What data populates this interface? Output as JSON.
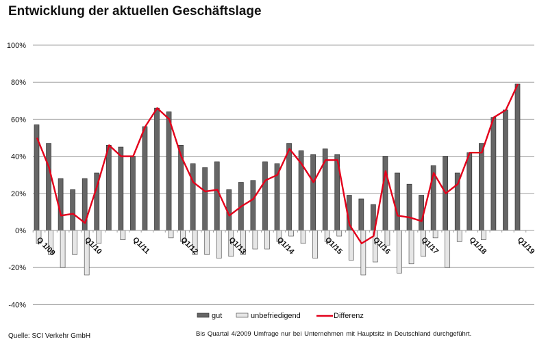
{
  "chart_data": {
    "type": "bar",
    "title": "Entwicklung der aktuellen Geschäftslage",
    "xlabel": "",
    "ylabel": "",
    "ylim": [
      -40,
      100
    ],
    "yticks": [
      100,
      80,
      60,
      40,
      20,
      0,
      -20,
      -40
    ],
    "ytick_labels": [
      "100%",
      "80%",
      "60%",
      "40%",
      "20%",
      "0%",
      "-20%",
      "-40%"
    ],
    "grid": true,
    "legend_position": "bottom",
    "categories": [
      "Q1/09",
      "Q2/09",
      "Q3/09",
      "Q4/09",
      "Q1/10",
      "Q2/10",
      "Q3/10",
      "Q4/10",
      "Q1/11",
      "Q2/11",
      "Q3/11",
      "Q4/11",
      "Q1/12",
      "Q2/12",
      "Q3/12",
      "Q4/12",
      "Q1/13",
      "Q2/13",
      "Q3/13",
      "Q4/13",
      "Q1/14",
      "Q2/14",
      "Q3/14",
      "Q4/14",
      "Q1/15",
      "Q2/15",
      "Q3/15",
      "Q4/15",
      "Q1/16",
      "Q2/16",
      "Q3/16",
      "Q4/16",
      "Q1/17",
      "Q2/17",
      "Q3/17",
      "Q4/17",
      "Q1/18",
      "Q2/18",
      "Q3/18",
      "Q4/18",
      "Q1/19"
    ],
    "xtick_labels": [
      {
        "index": 0,
        "label": "Q 1/09"
      },
      {
        "index": 4,
        "label": "Q1/10"
      },
      {
        "index": 8,
        "label": "Q1/11"
      },
      {
        "index": 12,
        "label": "Q1/12"
      },
      {
        "index": 16,
        "label": "Q1/13"
      },
      {
        "index": 20,
        "label": "Q1/14"
      },
      {
        "index": 24,
        "label": "Q1/15"
      },
      {
        "index": 28,
        "label": "Q1/16"
      },
      {
        "index": 32,
        "label": "Q1/17"
      },
      {
        "index": 36,
        "label": "Q1/18"
      },
      {
        "index": 40,
        "label": "Q1/19"
      }
    ],
    "series": [
      {
        "name": "gut",
        "type": "bar",
        "color": "#666666",
        "values": [
          57,
          47,
          28,
          22,
          28,
          31,
          46,
          45,
          40,
          56,
          66,
          64,
          46,
          36,
          34,
          37,
          22,
          26,
          27,
          37,
          36,
          47,
          43,
          41,
          44,
          41,
          19,
          17,
          14,
          40,
          31,
          25,
          19,
          35,
          40,
          31,
          42,
          47,
          61,
          65,
          79
        ]
      },
      {
        "name": "unbefriedigend",
        "type": "bar",
        "color": "#e6e6e6",
        "values": [
          -7,
          -13,
          -20,
          -13,
          -24,
          -7,
          0,
          -5,
          0,
          0,
          0,
          -4,
          -6,
          -13,
          -13,
          -15,
          -14,
          -13,
          -10,
          -10,
          -6,
          -3,
          -7,
          -15,
          -6,
          -3,
          -16,
          -24,
          -17,
          -8,
          -23,
          -18,
          -14,
          -4,
          -20,
          -6,
          0,
          -5,
          0,
          0,
          0
        ]
      },
      {
        "name": "Differenz",
        "type": "line",
        "color": "#e3001b",
        "values": [
          50,
          34,
          8,
          9,
          4,
          24,
          46,
          40,
          40,
          56,
          66,
          60,
          40,
          26,
          21,
          22,
          8,
          13,
          17,
          27,
          30,
          44,
          36,
          26,
          38,
          38,
          3,
          -7,
          -3,
          32,
          8,
          7,
          5,
          31,
          20,
          25,
          42,
          42,
          61,
          65,
          79
        ]
      }
    ]
  },
  "source": "Quelle: SCI Verkehr GmbH",
  "footnote": "Bis Quartal 4/2009 Umfrage nur bei Unternehmen mit Hauptsitz in Deutschland durchgeführt."
}
